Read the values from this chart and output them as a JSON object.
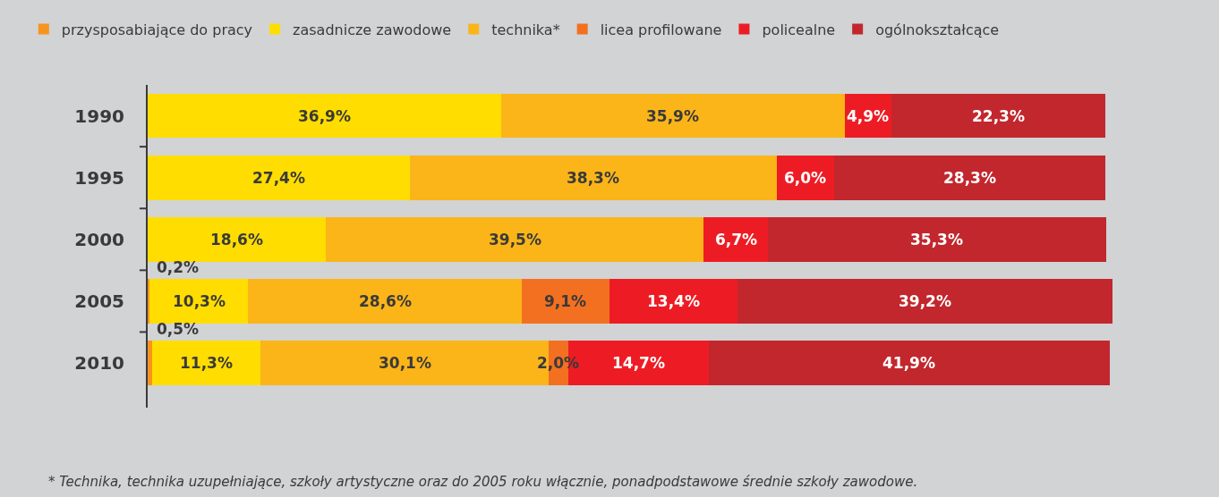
{
  "chart_data": {
    "type": "bar",
    "orientation": "horizontal",
    "stacked": true,
    "legend": "top",
    "tick_labels": "y",
    "categories": [
      "1990",
      "1995",
      "2000",
      "2005",
      "2010"
    ],
    "series": [
      {
        "name": "przysposabiające do pracy",
        "color": "#f7941d",
        "values": [
          null,
          null,
          null,
          0.2,
          0.5
        ],
        "value_labels": [
          null,
          null,
          null,
          "0,2%",
          "0,5%"
        ]
      },
      {
        "name": "zasadnicze zawodowe",
        "color": "#ffdd00",
        "values": [
          36.9,
          27.4,
          18.6,
          10.3,
          11.3
        ],
        "value_labels": [
          "36,9%",
          "27,4%",
          "18,6%",
          "10,3%",
          "11,3%"
        ]
      },
      {
        "name": "technika*",
        "color": "#fbb519",
        "values": [
          35.9,
          38.3,
          39.5,
          28.6,
          30.1
        ],
        "value_labels": [
          "35,9%",
          "38,3%",
          "39,5%",
          "28,6%",
          "30,1%"
        ]
      },
      {
        "name": "licea profilowane",
        "color": "#f37021",
        "values": [
          null,
          null,
          null,
          9.1,
          2.0
        ],
        "value_labels": [
          null,
          null,
          null,
          "9,1%",
          "2,0%"
        ]
      },
      {
        "name": "policealne",
        "color": "#ed1c24",
        "values": [
          4.9,
          6.0,
          6.7,
          13.4,
          14.7
        ],
        "value_labels": [
          "4,9%",
          "6,0%",
          "6,7%",
          "13,4%",
          "14,7%"
        ]
      },
      {
        "name": "ogólnokształcące",
        "color": "#c1272d",
        "values": [
          22.3,
          28.3,
          35.3,
          39.2,
          41.9
        ],
        "value_labels": [
          "22,3%",
          "28,3%",
          "35,3%",
          "39,2%",
          "41,9%"
        ]
      }
    ],
    "annotations": [
      "* Technika, technika uzupełniające, szkoły artystyczne oraz do 2005 roku włącznie, ponadpodstawowe średnie szkoły zawodowe."
    ]
  }
}
